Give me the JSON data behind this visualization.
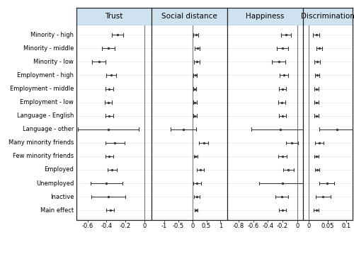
{
  "rows": [
    "Minority - high",
    "Minority - middle",
    "Minority - low",
    "Employment - high",
    "Employment - middle",
    "Employment - low",
    "Language - English",
    "Language - other",
    "Many minority friends",
    "Few minority friends",
    "Employed",
    "Unemployed",
    "Inactive",
    "Main effect"
  ],
  "panels": [
    {
      "title": "Trust",
      "xmin": -0.72,
      "xmax": 0.08,
      "xticks": [
        -0.6,
        -0.4,
        -0.2,
        0
      ],
      "zero": 0,
      "points": [
        -0.28,
        -0.38,
        -0.48,
        -0.35,
        -0.37,
        -0.38,
        -0.37,
        -0.38,
        -0.31,
        -0.37,
        -0.34,
        -0.4,
        -0.38,
        -0.36
      ],
      "lo": [
        -0.34,
        -0.45,
        -0.55,
        -0.4,
        -0.41,
        -0.42,
        -0.41,
        -0.7,
        -0.41,
        -0.41,
        -0.39,
        -0.57,
        -0.56,
        -0.4
      ],
      "hi": [
        -0.22,
        -0.31,
        -0.41,
        -0.3,
        -0.33,
        -0.34,
        -0.33,
        -0.06,
        -0.21,
        -0.33,
        -0.29,
        -0.23,
        -0.2,
        -0.32
      ]
    },
    {
      "title": "Social distance",
      "xmin": -1.45,
      "xmax": 1.25,
      "xticks": [
        -1,
        -0.5,
        0,
        0.5,
        1
      ],
      "zero": 0,
      "points": [
        0.13,
        0.18,
        0.16,
        0.1,
        0.08,
        0.09,
        0.09,
        -0.32,
        0.4,
        0.12,
        0.28,
        0.17,
        0.16,
        0.13
      ],
      "lo": [
        0.04,
        0.09,
        0.05,
        0.03,
        0.02,
        0.03,
        0.02,
        -0.78,
        0.23,
        0.05,
        0.16,
        0.03,
        0.05,
        0.07
      ],
      "hi": [
        0.22,
        0.27,
        0.27,
        0.17,
        0.14,
        0.15,
        0.16,
        0.14,
        0.57,
        0.19,
        0.4,
        0.31,
        0.27,
        0.19
      ]
    },
    {
      "title": "Happiness",
      "xmin": -0.95,
      "xmax": 0.08,
      "xticks": [
        -0.8,
        -0.6,
        -0.4,
        -0.2,
        0
      ],
      "zero": 0,
      "points": [
        -0.15,
        -0.2,
        -0.25,
        -0.18,
        -0.2,
        -0.21,
        -0.2,
        -0.23,
        -0.07,
        -0.2,
        -0.12,
        -0.2,
        -0.21,
        -0.2
      ],
      "lo": [
        -0.22,
        -0.28,
        -0.34,
        -0.24,
        -0.25,
        -0.26,
        -0.25,
        -0.62,
        -0.15,
        -0.26,
        -0.19,
        -0.52,
        -0.3,
        -0.25
      ],
      "hi": [
        -0.08,
        -0.12,
        -0.16,
        -0.12,
        -0.15,
        -0.16,
        -0.15,
        0.16,
        0.01,
        -0.14,
        -0.05,
        0.12,
        -0.12,
        -0.15
      ]
    },
    {
      "title": "Discrimination",
      "xmin": -0.015,
      "xmax": 0.115,
      "xticks": [
        0,
        0.05,
        0.1
      ],
      "zero": 0,
      "points": [
        0.02,
        0.028,
        0.022,
        0.022,
        0.02,
        0.02,
        0.02,
        0.075,
        0.028,
        0.02,
        0.022,
        0.048,
        0.038,
        0.02
      ],
      "lo": [
        0.012,
        0.02,
        0.014,
        0.016,
        0.014,
        0.014,
        0.014,
        0.028,
        0.016,
        0.014,
        0.016,
        0.028,
        0.018,
        0.013
      ],
      "hi": [
        0.028,
        0.036,
        0.03,
        0.028,
        0.026,
        0.026,
        0.026,
        0.115,
        0.04,
        0.026,
        0.028,
        0.068,
        0.058,
        0.027
      ]
    }
  ],
  "header_bg": "#cfe2f0",
  "plot_bg": "#ffffff",
  "dot_color": "#3a3a3a",
  "line_color": "#3a3a3a",
  "grid_color": "#e8e8e8",
  "zero_color": "#777777",
  "border_color": "#222222",
  "font_size": 6.0,
  "title_font_size": 7.5,
  "label_font_size": 6.0
}
